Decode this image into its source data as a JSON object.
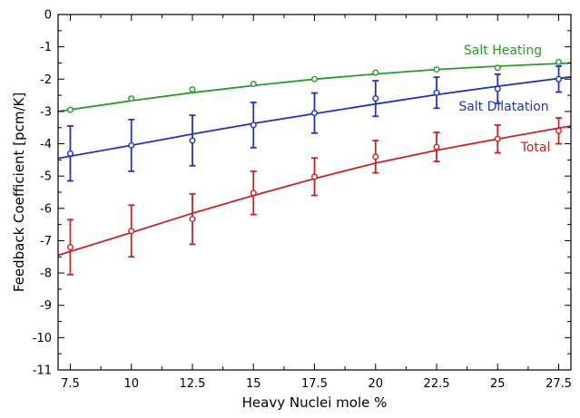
{
  "chart_data": {
    "type": "scatter",
    "title": "",
    "xlabel": "Heavy Nuclei mole %",
    "ylabel": "Feedback Coefficient [pcm/K]",
    "xlim": [
      7,
      28
    ],
    "ylim": [
      -11,
      0
    ],
    "xticks": [
      7.5,
      10,
      12.5,
      15,
      17.5,
      20,
      22.5,
      25,
      27.5
    ],
    "xtick_labels": [
      "7.5",
      "10",
      "12.5",
      "15",
      "17.5",
      "20",
      "22.5",
      "25",
      "27.5"
    ],
    "yticks": [
      0,
      -1,
      -2,
      -3,
      -4,
      -5,
      -6,
      -7,
      -8,
      -9,
      -10,
      -11
    ],
    "ytick_labels": [
      "0",
      "-1",
      "-2",
      "-3",
      "-4",
      "-5",
      "-6",
      "-7",
      "-8",
      "-9",
      "-10",
      "-11"
    ],
    "grid": false,
    "legend": "inline labels",
    "series": [
      {
        "name": "Salt Heating",
        "color": "#2a9a2a",
        "x": [
          7.5,
          10,
          12.5,
          15,
          17.5,
          20,
          22.5,
          25,
          27.5
        ],
        "y": [
          -2.95,
          -2.6,
          -2.32,
          -2.15,
          -2.0,
          -1.8,
          -1.7,
          -1.65,
          -1.47
        ],
        "err": [
          0,
          0,
          0,
          0,
          0,
          0,
          0,
          0,
          0
        ],
        "fit_x": [
          7,
          10,
          12.5,
          15,
          17.5,
          20,
          22.5,
          25,
          28
        ],
        "fit_y": [
          -3.0,
          -2.67,
          -2.42,
          -2.2,
          -2.0,
          -1.84,
          -1.7,
          -1.6,
          -1.5
        ]
      },
      {
        "name": "Salt Dilatation",
        "color": "#2233bb",
        "x": [
          7.5,
          10,
          12.5,
          15,
          17.5,
          20,
          22.5,
          25,
          27.5
        ],
        "y": [
          -4.3,
          -4.05,
          -3.9,
          -3.42,
          -3.05,
          -2.6,
          -2.42,
          -2.3,
          -2.0
        ],
        "err": [
          0.85,
          0.8,
          0.78,
          0.7,
          0.62,
          0.55,
          0.48,
          0.45,
          0.4
        ],
        "fit_x": [
          7,
          10,
          12.5,
          15,
          17.5,
          20,
          22.5,
          25,
          28
        ],
        "fit_y": [
          -4.45,
          -4.05,
          -3.7,
          -3.37,
          -3.07,
          -2.77,
          -2.48,
          -2.22,
          -1.93
        ]
      },
      {
        "name": "Total",
        "color": "#cc2222",
        "x": [
          7.5,
          10,
          12.5,
          15,
          17.5,
          20,
          22.5,
          25,
          27.5
        ],
        "y": [
          -7.2,
          -6.7,
          -6.33,
          -5.52,
          -5.02,
          -4.4,
          -4.1,
          -3.85,
          -3.6
        ],
        "err": [
          0.85,
          0.8,
          0.78,
          0.67,
          0.58,
          0.5,
          0.45,
          0.43,
          0.4
        ],
        "fit_x": [
          7,
          10,
          12.5,
          15,
          17.5,
          20,
          22.5,
          25,
          28
        ],
        "fit_y": [
          -7.45,
          -6.75,
          -6.15,
          -5.6,
          -5.08,
          -4.6,
          -4.2,
          -3.85,
          -3.45
        ]
      }
    ]
  }
}
